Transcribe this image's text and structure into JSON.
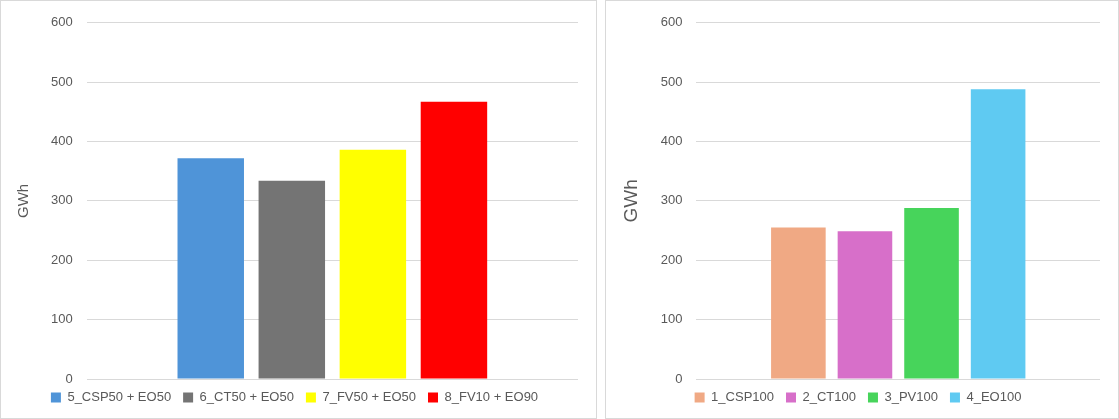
{
  "chart_data": [
    {
      "type": "bar",
      "ylabel": "GWh",
      "categories": [
        null
      ],
      "ylim": [
        0,
        600
      ],
      "yticks": [
        0,
        100,
        200,
        300,
        400,
        500,
        600
      ],
      "grid": "y",
      "legend": "bottom",
      "series": [
        {
          "name": "5_CSP50 + EO50",
          "color": "#4f94d8",
          "values": [
            372
          ]
        },
        {
          "name": "6_CT50 + EO50",
          "color": "#747474",
          "values": [
            334
          ]
        },
        {
          "name": "7_FV50 + EO50",
          "color": "#ffff00",
          "values": [
            386
          ]
        },
        {
          "name": "8_FV10 + EO90",
          "color": "#ff0000",
          "values": [
            467
          ]
        }
      ]
    },
    {
      "type": "bar",
      "ylabel": "GWh",
      "categories": [
        null
      ],
      "ylim": [
        0,
        600
      ],
      "yticks": [
        0,
        100,
        200,
        300,
        400,
        500,
        600
      ],
      "grid": "y",
      "legend": "bottom",
      "series": [
        {
          "name": "1_CSP100",
          "color": "#f0a984",
          "values": [
            255
          ]
        },
        {
          "name": "2_CT100",
          "color": "#d76fc9",
          "values": [
            249
          ]
        },
        {
          "name": "3_PV100",
          "color": "#47d45b",
          "values": [
            288
          ]
        },
        {
          "name": "4_EO100",
          "color": "#5fcaf2",
          "values": [
            488
          ]
        }
      ]
    }
  ]
}
